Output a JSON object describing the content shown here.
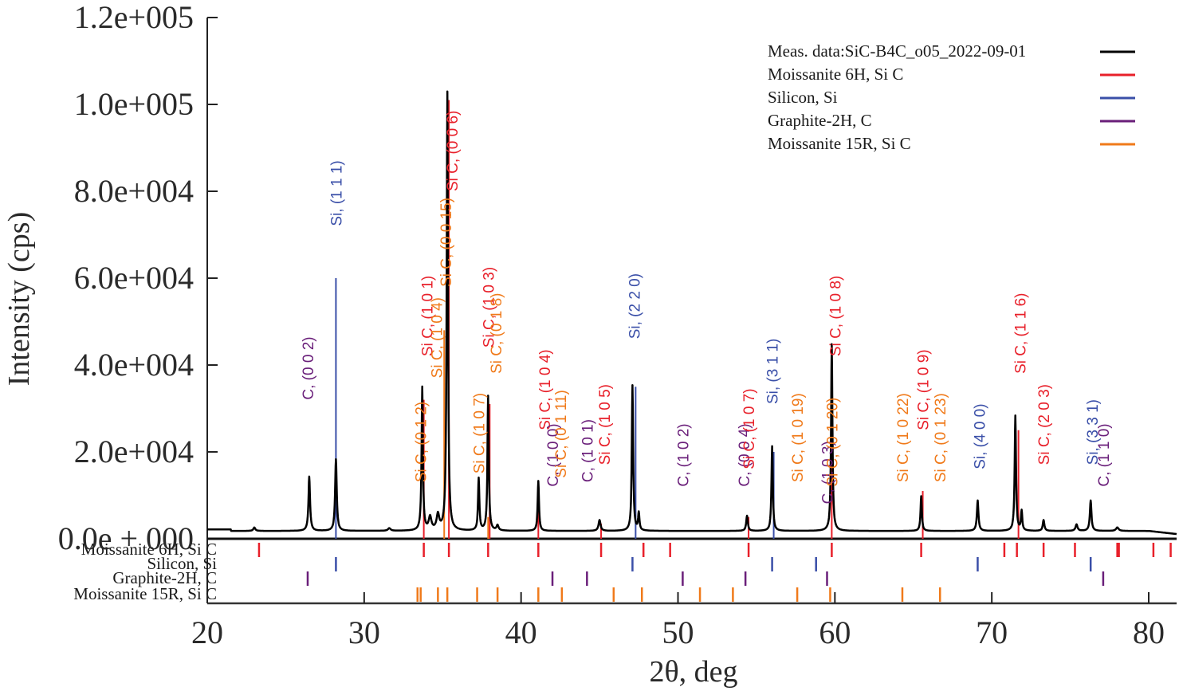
{
  "chart_data": {
    "type": "line",
    "title": "",
    "xlabel": "2θ, deg",
    "ylabel": "Intensity (cps)",
    "xlim": [
      20,
      82
    ],
    "ylim": [
      0,
      120000
    ],
    "x_ticks": [
      20,
      30,
      40,
      50,
      60,
      70,
      80
    ],
    "x_tick_labels": [
      "20",
      "30",
      "40",
      "50",
      "60",
      "70",
      "80"
    ],
    "y_ticks": [
      0,
      20000,
      40000,
      60000,
      80000,
      100000,
      120000
    ],
    "y_tick_labels": [
      "0.0e + 000",
      "2.0e+004",
      "4.0e+004",
      "6.0e+004",
      "8.0e+004",
      "1.0e+005",
      "1.2e+005"
    ],
    "grid": false,
    "legend_position": "top-right",
    "legend": [
      {
        "label": "Meas. data:SiC-B4C_o05_2022-09-01",
        "color": "#000000"
      },
      {
        "label": "Moissanite 6H, Si C",
        "color": "#e8202a"
      },
      {
        "label": "Silicon, Si",
        "color": "#3a4fa8"
      },
      {
        "label": "Graphite-2H, C",
        "color": "#6a1f7a"
      },
      {
        "label": "Moissanite 15R, Si C",
        "color": "#f07a1a"
      }
    ],
    "series": [
      {
        "name": "Meas. data:SiC-B4C_o05_2022-09-01",
        "color": "#000000",
        "baseline": 1800,
        "peaks": [
          {
            "x": 23.0,
            "y": 800,
            "w": 0.15
          },
          {
            "x": 26.5,
            "y": 12500,
            "w": 0.12
          },
          {
            "x": 28.2,
            "y": 16500,
            "w": 0.12
          },
          {
            "x": 31.6,
            "y": 600,
            "w": 0.2
          },
          {
            "x": 33.7,
            "y": 33000,
            "w": 0.1
          },
          {
            "x": 34.2,
            "y": 3000,
            "w": 0.2
          },
          {
            "x": 34.7,
            "y": 3500,
            "w": 0.2
          },
          {
            "x": 35.3,
            "y": 101000,
            "w": 0.1
          },
          {
            "x": 37.3,
            "y": 12000,
            "w": 0.1
          },
          {
            "x": 37.9,
            "y": 31000,
            "w": 0.1
          },
          {
            "x": 38.5,
            "y": 1200,
            "w": 0.15
          },
          {
            "x": 41.1,
            "y": 11500,
            "w": 0.1
          },
          {
            "x": 45.0,
            "y": 2500,
            "w": 0.15
          },
          {
            "x": 47.1,
            "y": 33500,
            "w": 0.1
          },
          {
            "x": 47.5,
            "y": 4000,
            "w": 0.1
          },
          {
            "x": 54.4,
            "y": 3500,
            "w": 0.12
          },
          {
            "x": 56.0,
            "y": 19500,
            "w": 0.1
          },
          {
            "x": 59.8,
            "y": 43000,
            "w": 0.1
          },
          {
            "x": 65.5,
            "y": 8000,
            "w": 0.1
          },
          {
            "x": 69.1,
            "y": 7000,
            "w": 0.12
          },
          {
            "x": 71.5,
            "y": 26500,
            "w": 0.1
          },
          {
            "x": 71.9,
            "y": 4500,
            "w": 0.1
          },
          {
            "x": 73.3,
            "y": 2500,
            "w": 0.12
          },
          {
            "x": 75.4,
            "y": 1500,
            "w": 0.15
          },
          {
            "x": 76.3,
            "y": 7000,
            "w": 0.12
          },
          {
            "x": 78.0,
            "y": 800,
            "w": 0.2
          }
        ]
      }
    ],
    "reference_lines": [
      {
        "phase": "Silicon, Si",
        "x": 28.2,
        "y": 60000
      },
      {
        "phase": "Silicon, Si",
        "x": 47.3,
        "y": 35000
      },
      {
        "phase": "Silicon, Si",
        "x": 56.1,
        "y": 20000
      },
      {
        "phase": "Moissanite 6H, Si C",
        "x": 33.8,
        "y": 32000
      },
      {
        "phase": "Moissanite 6H, Si C",
        "x": 35.4,
        "y": 101000
      },
      {
        "phase": "Moissanite 6H, Si C",
        "x": 38.0,
        "y": 31000
      },
      {
        "phase": "Moissanite 6H, Si C",
        "x": 41.1,
        "y": 12000
      },
      {
        "phase": "Moissanite 6H, Si C",
        "x": 45.1,
        "y": 3500
      },
      {
        "phase": "Moissanite 6H, Si C",
        "x": 54.5,
        "y": 5000
      },
      {
        "phase": "Moissanite 6H, Si C",
        "x": 59.8,
        "y": 43000
      },
      {
        "phase": "Moissanite 6H, Si C",
        "x": 65.6,
        "y": 11000
      },
      {
        "phase": "Moissanite 6H, Si C",
        "x": 71.7,
        "y": 25000
      },
      {
        "phase": "Moissanite 15R, Si C",
        "x": 35.1,
        "y": 48000
      },
      {
        "phase": "Moissanite 15R, Si C",
        "x": 37.9,
        "y": 5000
      }
    ],
    "peak_labels": [
      {
        "text": "C, (0 0 2)",
        "x": 26.4,
        "y": 32000,
        "color": "#6a1f7a"
      },
      {
        "text": "Si, (1 1 1)",
        "x": 28.2,
        "y": 72000,
        "color": "#3a4fa8"
      },
      {
        "text": "Si C, (0 1 2)",
        "x": 33.6,
        "y": 13000,
        "color": "#f07a1a"
      },
      {
        "text": "Si C, (1 0 1)",
        "x": 34.0,
        "y": 42000,
        "color": "#e8202a"
      },
      {
        "text": "Si C, (1 0 4)",
        "x": 34.6,
        "y": 37000,
        "color": "#f07a1a"
      },
      {
        "text": "Si C, (0 0 15)",
        "x": 35.2,
        "y": 58000,
        "color": "#f07a1a"
      },
      {
        "text": "Si C, (0 0 6)",
        "x": 35.6,
        "y": 80000,
        "color": "#e8202a"
      },
      {
        "text": "Si C, (1 0 7)",
        "x": 37.3,
        "y": 15000,
        "color": "#f07a1a"
      },
      {
        "text": "Si C, (1 0 3)",
        "x": 37.9,
        "y": 44000,
        "color": "#e8202a"
      },
      {
        "text": "Si C, (0 1 8)",
        "x": 38.4,
        "y": 38000,
        "color": "#f07a1a"
      },
      {
        "text": "Si C, (1 0 4)",
        "x": 41.5,
        "y": 25000,
        "color": "#e8202a"
      },
      {
        "text": "C, (1 0 0)",
        "x": 42.0,
        "y": 12000,
        "color": "#6a1f7a"
      },
      {
        "text": "Si C, (0 1 11)",
        "x": 42.5,
        "y": 14000,
        "color": "#f07a1a"
      },
      {
        "text": "C, (1 0 1)",
        "x": 44.2,
        "y": 13000,
        "color": "#6a1f7a"
      },
      {
        "text": "Si C, (1 0 5)",
        "x": 45.3,
        "y": 17000,
        "color": "#e8202a"
      },
      {
        "text": "Si, (2 2 0)",
        "x": 47.2,
        "y": 46000,
        "color": "#3a4fa8"
      },
      {
        "text": "C, (1 0 2)",
        "x": 50.3,
        "y": 12000,
        "color": "#6a1f7a"
      },
      {
        "text": "C, (0 0 4)",
        "x": 54.2,
        "y": 12000,
        "color": "#6a1f7a"
      },
      {
        "text": "Si C, (1 0 7)",
        "x": 54.5,
        "y": 16000,
        "color": "#e8202a"
      },
      {
        "text": "Si, (3 1 1)",
        "x": 56.0,
        "y": 31000,
        "color": "#3a4fa8"
      },
      {
        "text": "Si C, (1 0 19)",
        "x": 57.6,
        "y": 13000,
        "color": "#f07a1a"
      },
      {
        "text": "C, (1 0 3)",
        "x": 59.5,
        "y": 8000,
        "color": "#6a1f7a"
      },
      {
        "text": "Si C, (0 1 20)",
        "x": 59.8,
        "y": 12000,
        "color": "#f07a1a"
      },
      {
        "text": "Si C, (1 0 8)",
        "x": 60.0,
        "y": 42000,
        "color": "#e8202a"
      },
      {
        "text": "Si C, (1 0 22)",
        "x": 64.3,
        "y": 13000,
        "color": "#f07a1a"
      },
      {
        "text": "Si C, (1 0 9)",
        "x": 65.6,
        "y": 25000,
        "color": "#e8202a"
      },
      {
        "text": "Si C, (0 1 23)",
        "x": 66.7,
        "y": 13000,
        "color": "#f07a1a"
      },
      {
        "text": "Si, (4 0 0)",
        "x": 69.2,
        "y": 16000,
        "color": "#3a4fa8"
      },
      {
        "text": "Si C, (1 1 6)",
        "x": 71.8,
        "y": 38000,
        "color": "#e8202a"
      },
      {
        "text": "Si C, (2 0 3)",
        "x": 73.3,
        "y": 17000,
        "color": "#e8202a"
      },
      {
        "text": "Si, (3 3 1)",
        "x": 76.4,
        "y": 17000,
        "color": "#3a4fa8"
      },
      {
        "text": "C, (1 1 0)",
        "x": 77.1,
        "y": 12000,
        "color": "#6a1f7a"
      }
    ],
    "phase_rows": [
      {
        "label": "Moissanite 6H, Si C",
        "color": "#e8202a",
        "positions": [
          23.3,
          33.8,
          35.4,
          37.9,
          41.1,
          45.1,
          47.8,
          49.5,
          54.5,
          59.8,
          65.5,
          70.8,
          71.6,
          73.3,
          75.3,
          78.0,
          78.1,
          80.3,
          81.4
        ]
      },
      {
        "label": "Silicon, Si",
        "color": "#3a4fa8",
        "positions": [
          28.2,
          47.1,
          56.0,
          58.8,
          69.1,
          76.3
        ]
      },
      {
        "label": "Graphite-2H, C",
        "color": "#6a1f7a",
        "positions": [
          26.4,
          42.0,
          44.2,
          50.3,
          54.3,
          59.5,
          77.1
        ]
      },
      {
        "label": "Moissanite 15R, Si C",
        "color": "#f07a1a",
        "positions": [
          33.4,
          33.6,
          34.7,
          35.3,
          37.2,
          38.5,
          41.1,
          42.6,
          45.9,
          47.7,
          51.4,
          53.5,
          57.6,
          59.7,
          64.3,
          66.7
        ]
      }
    ]
  }
}
